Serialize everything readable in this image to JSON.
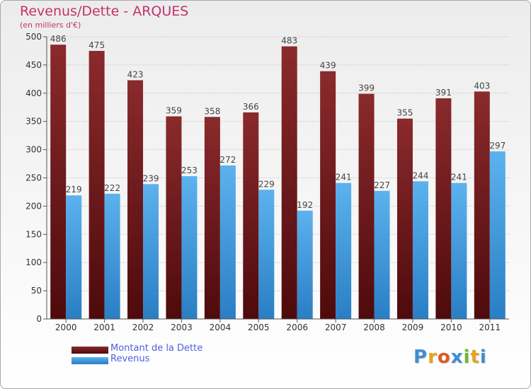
{
  "title": "Revenus/Dette - ARQUES",
  "subtitle": "(en milliers d'€)",
  "legend": {
    "dette_label": "Montant de la Dette",
    "revenus_label": "Revenus"
  },
  "logo_text": "Proxiti",
  "colors": {
    "dette": "#6e1518",
    "revenus": "#4aa3e6",
    "title": "#c2326b",
    "legend_text": "#5060e0"
  },
  "chart_data": {
    "type": "bar",
    "categories": [
      "2000",
      "2001",
      "2002",
      "2003",
      "2004",
      "2005",
      "2006",
      "2007",
      "2008",
      "2009",
      "2010",
      "2011"
    ],
    "series": [
      {
        "name": "Montant de la Dette",
        "values": [
          486,
          475,
          423,
          359,
          358,
          366,
          483,
          439,
          399,
          355,
          391,
          403
        ]
      },
      {
        "name": "Revenus",
        "values": [
          219,
          222,
          239,
          253,
          272,
          229,
          192,
          241,
          227,
          244,
          241,
          297
        ]
      }
    ],
    "ylim": [
      0,
      500
    ],
    "yticks": [
      0,
      50,
      100,
      150,
      200,
      250,
      300,
      350,
      400,
      450,
      500
    ],
    "grid": true,
    "legend_position": "bottom-left"
  }
}
